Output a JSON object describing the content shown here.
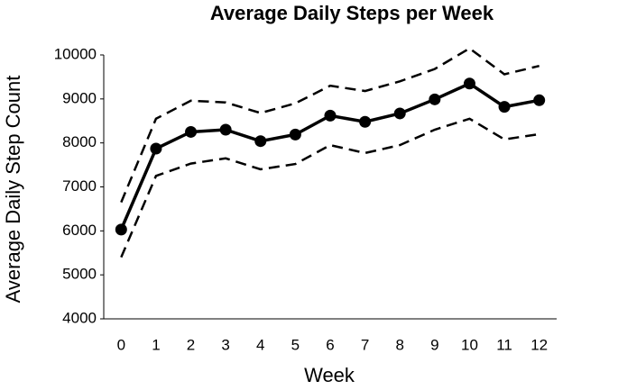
{
  "chart_data": {
    "type": "line",
    "title": "Average Daily  Steps per Week",
    "x_label": "Week",
    "y_label": "Average Daily Step Count",
    "x": [
      0,
      1,
      2,
      3,
      4,
      5,
      6,
      7,
      8,
      9,
      10,
      11,
      12
    ],
    "series": [
      {
        "color": "#000000",
        "style": "solid",
        "markers": true,
        "values": [
          6030,
          7870,
          8250,
          8300,
          8040,
          8190,
          8620,
          8480,
          8670,
          8990,
          9350,
          8820,
          8970
        ]
      },
      {
        "color": "#000000",
        "style": "dashed",
        "markers": false,
        "values": [
          6650,
          8550,
          8960,
          8920,
          8680,
          8900,
          9300,
          9180,
          9400,
          9680,
          10150,
          9560,
          9750
        ]
      },
      {
        "color": "#000000",
        "style": "dashed",
        "markers": false,
        "values": [
          5400,
          7250,
          7530,
          7650,
          7400,
          7520,
          7950,
          7770,
          7950,
          8300,
          8550,
          8080,
          8200
        ]
      }
    ],
    "xlim": [
      -0.5,
      12.5
    ],
    "xticks": [
      0,
      1,
      2,
      3,
      4,
      5,
      6,
      7,
      8,
      9,
      10,
      11,
      12
    ],
    "ylim": [
      4000,
      10000
    ],
    "yticks": [
      4000,
      5000,
      6000,
      7000,
      8000,
      9000,
      10000
    ],
    "grid": false
  }
}
